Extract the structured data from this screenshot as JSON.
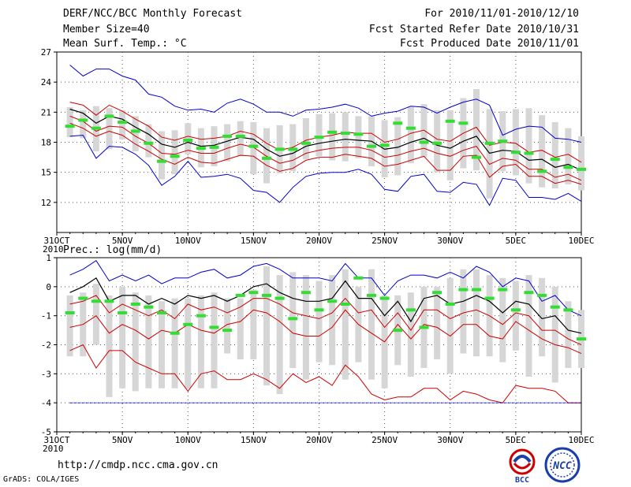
{
  "header": {
    "title": "DERF/NCC/BCC Monthly Forecast",
    "member": "Member Size=40",
    "variable": "Mean Surf. Temp.: °C",
    "period": "For 2010/11/01-2010/12/10",
    "started": "Fcst Started Refer Date 2010/10/31",
    "produced": "Fcst Produced Date 2010/11/01"
  },
  "footer": {
    "url": "http://cmdp.ncc.cma.gov.cn",
    "grads": "GrADS: COLA/IGES",
    "logo_bcc_text": "BCC",
    "logo_ncc_text": "NCC"
  },
  "colors": {
    "envelope_max_min": "#0000cc",
    "spread": "#cc0000",
    "mean": "#000000",
    "members_box": "#d6d6d6",
    "median": "#33dd33",
    "grid": "#555555"
  },
  "x_axis": {
    "ticks": [
      {
        "day": 0,
        "label": "31OCT",
        "sub": "2010"
      },
      {
        "day": 5,
        "label": "5NOV"
      },
      {
        "day": 10,
        "label": "10NOV"
      },
      {
        "day": 15,
        "label": "15NOV"
      },
      {
        "day": 20,
        "label": "20NOV"
      },
      {
        "day": 25,
        "label": "25NOV"
      },
      {
        "day": 30,
        "label": "30NOV"
      },
      {
        "day": 35,
        "label": "5DEC"
      },
      {
        "day": 40,
        "label": "10DEC"
      }
    ]
  },
  "chart_data": [
    {
      "type": "line",
      "title": "Mean Surf. Temp.: °C",
      "ylabel": "",
      "ylim": [
        9,
        27
      ],
      "yticks": [
        12,
        15,
        18,
        21,
        24,
        27
      ],
      "xlim": [
        0,
        40
      ],
      "x": [
        1,
        2,
        3,
        4,
        5,
        6,
        7,
        8,
        9,
        10,
        11,
        12,
        13,
        14,
        15,
        16,
        17,
        18,
        19,
        20,
        21,
        22,
        23,
        24,
        25,
        26,
        27,
        28,
        29,
        30,
        31,
        32,
        33,
        34,
        35,
        36,
        37,
        38,
        39,
        40
      ],
      "series": [
        {
          "name": "max",
          "values": [
            25.7,
            24.6,
            25.3,
            25.3,
            24.6,
            24.2,
            22.8,
            22.5,
            21.6,
            21.2,
            21.3,
            21.0,
            21.9,
            22.3,
            21.8,
            21.0,
            21.0,
            20.6,
            21.2,
            21.3,
            21.5,
            21.8,
            21.4,
            20.6,
            20.9,
            21.1,
            21.6,
            21.5,
            20.9,
            21.5,
            22.0,
            22.3,
            21.7,
            18.7,
            19.3,
            19.6,
            19.5,
            18.4,
            18.3,
            18.0
          ]
        },
        {
          "name": "spread_upper",
          "values": [
            22.0,
            21.7,
            20.7,
            21.7,
            21.1,
            20.3,
            19.6,
            18.5,
            18.2,
            18.6,
            18.3,
            18.4,
            18.6,
            19.1,
            18.8,
            17.9,
            17.2,
            17.5,
            18.2,
            18.5,
            18.7,
            19.0,
            18.9,
            18.9,
            18.0,
            18.3,
            18.9,
            19.2,
            18.3,
            18.1,
            18.9,
            19.5,
            17.7,
            18.0,
            17.9,
            17.0,
            17.2,
            16.5,
            16.8,
            16.0
          ]
        },
        {
          "name": "mean",
          "values": [
            21.3,
            20.9,
            19.9,
            20.6,
            20.3,
            19.5,
            18.8,
            17.8,
            17.5,
            18.0,
            17.6,
            17.7,
            18.1,
            18.5,
            18.3,
            17.3,
            16.6,
            16.9,
            17.6,
            17.9,
            18.1,
            18.3,
            18.2,
            18.1,
            17.3,
            17.5,
            18.0,
            18.4,
            17.7,
            17.4,
            18.1,
            18.6,
            16.9,
            17.2,
            17.1,
            16.2,
            16.3,
            15.5,
            15.8,
            15.2
          ]
        },
        {
          "name": "spread_lower",
          "values": [
            20.6,
            20.1,
            19.1,
            19.6,
            19.5,
            18.6,
            17.9,
            16.9,
            16.8,
            17.2,
            16.9,
            16.9,
            17.4,
            17.8,
            17.5,
            16.6,
            15.9,
            16.2,
            16.9,
            17.2,
            17.4,
            17.5,
            17.5,
            17.2,
            16.5,
            16.7,
            17.1,
            17.4,
            16.9,
            16.6,
            17.2,
            17.6,
            15.8,
            16.4,
            16.2,
            15.3,
            15.3,
            14.5,
            14.8,
            14.2
          ]
        },
        {
          "name": "spread_lowest",
          "values": [
            19.9,
            19.4,
            18.6,
            19.1,
            18.7,
            17.8,
            17.1,
            16.3,
            15.8,
            16.5,
            16.0,
            15.9,
            16.3,
            16.7,
            16.6,
            15.7,
            15.1,
            15.4,
            16.2,
            16.5,
            16.5,
            16.8,
            16.6,
            16.4,
            15.6,
            15.8,
            16.2,
            16.6,
            15.2,
            15.2,
            16.6,
            16.7,
            14.5,
            15.6,
            15.8,
            14.6,
            14.6,
            13.9,
            14.2,
            13.8
          ]
        },
        {
          "name": "min",
          "values": [
            18.6,
            18.7,
            16.4,
            17.6,
            17.5,
            16.8,
            15.7,
            13.7,
            14.6,
            16.1,
            14.5,
            14.6,
            14.8,
            14.4,
            13.2,
            13.0,
            12.0,
            13.5,
            14.6,
            14.9,
            15.0,
            15.0,
            15.3,
            14.8,
            13.3,
            13.1,
            14.6,
            14.8,
            13.1,
            13.0,
            14.0,
            13.8,
            11.7,
            14.4,
            14.2,
            12.5,
            12.5,
            12.3,
            12.9,
            12.1
          ]
        },
        {
          "name": "box_top",
          "values": [
            21.5,
            21.2,
            21.6,
            21.4,
            21.2,
            20.6,
            19.8,
            19.1,
            19.2,
            19.9,
            19.4,
            19.6,
            19.8,
            20.1,
            20.0,
            19.4,
            19.7,
            19.8,
            20.4,
            20.8,
            20.9,
            21.0,
            20.6,
            20.6,
            20.2,
            20.5,
            21.6,
            21.8,
            21.2,
            21.2,
            22.4,
            23.3,
            21.3,
            21.1,
            21.3,
            21.4,
            20.7,
            20.0,
            19.4,
            18.6
          ]
        },
        {
          "name": "box_bottom",
          "values": [
            18.5,
            18.4,
            17.1,
            17.3,
            18.3,
            17.1,
            16.5,
            14.3,
            14.8,
            16.8,
            15.5,
            15.6,
            16.1,
            16.6,
            14.8,
            13.9,
            14.9,
            15.1,
            16.3,
            16.6,
            16.2,
            16.1,
            16.4,
            15.6,
            14.5,
            14.7,
            15.9,
            16.5,
            15.0,
            14.2,
            15.4,
            15.2,
            12.4,
            15.1,
            14.7,
            13.9,
            13.5,
            13.4,
            13.8,
            13.2
          ]
        },
        {
          "name": "median",
          "values": [
            19.6,
            20.2,
            19.4,
            20.6,
            20.0,
            19.1,
            17.9,
            16.1,
            16.6,
            18.2,
            17.4,
            17.5,
            18.6,
            18.6,
            17.6,
            16.4,
            17.3,
            17.3,
            17.9,
            18.5,
            19.0,
            18.9,
            18.8,
            17.6,
            17.7,
            19.9,
            19.4,
            18.0,
            17.9,
            20.1,
            19.9,
            16.5,
            17.9,
            18.1,
            17.0,
            16.9,
            15.1,
            16.3,
            15.5,
            15.3
          ]
        }
      ]
    },
    {
      "type": "line",
      "title": "Prec.: log(mm/d)",
      "ylabel": "",
      "ylim": [
        -5,
        1
      ],
      "yticks": [
        -5,
        -4,
        -3,
        -2,
        -1,
        0,
        1
      ],
      "xlim": [
        0,
        40
      ],
      "x": [
        1,
        2,
        3,
        4,
        5,
        6,
        7,
        8,
        9,
        10,
        11,
        12,
        13,
        14,
        15,
        16,
        17,
        18,
        19,
        20,
        21,
        22,
        23,
        24,
        25,
        26,
        27,
        28,
        29,
        30,
        31,
        32,
        33,
        34,
        35,
        36,
        37,
        38,
        39,
        40
      ],
      "series": [
        {
          "name": "max",
          "values": [
            0.4,
            0.6,
            0.9,
            0.2,
            0.4,
            0.2,
            0.4,
            0.1,
            0.3,
            0.3,
            0.5,
            0.6,
            0.3,
            0.4,
            0.7,
            0.8,
            0.6,
            0.3,
            0.3,
            0.3,
            0.2,
            0.8,
            0.3,
            0.3,
            -0.3,
            0.2,
            0.4,
            0.4,
            0.3,
            0.5,
            0.3,
            0.7,
            0.5,
            0.0,
            0.3,
            0.2,
            -0.5,
            -0.3,
            -0.8,
            -1.0
          ]
        },
        {
          "name": "mean",
          "values": [
            -0.2,
            0.0,
            0.3,
            -0.5,
            -0.3,
            -0.3,
            -0.6,
            -0.4,
            -0.6,
            -0.3,
            -0.4,
            -0.3,
            -0.5,
            -0.3,
            0.0,
            0.1,
            -0.2,
            -0.4,
            -0.5,
            -0.5,
            -0.4,
            0.2,
            -0.4,
            -0.4,
            -1.0,
            -0.5,
            -1.2,
            -0.4,
            -0.3,
            -0.6,
            -0.5,
            -0.3,
            -0.5,
            -0.9,
            -0.5,
            -0.6,
            -1.1,
            -1.0,
            -1.5,
            -1.6
          ]
        },
        {
          "name": "spread_upper",
          "values": [
            -0.6,
            -0.5,
            -0.3,
            -0.9,
            -0.6,
            -0.8,
            -1.0,
            -0.8,
            -1.1,
            -0.6,
            -0.8,
            -0.7,
            -0.9,
            -0.7,
            -0.4,
            -0.4,
            -0.6,
            -0.9,
            -1.0,
            -1.1,
            -0.9,
            -0.4,
            -0.9,
            -0.8,
            -1.4,
            -0.9,
            -1.5,
            -0.8,
            -0.8,
            -1.1,
            -0.9,
            -0.8,
            -1.0,
            -1.3,
            -0.9,
            -1.0,
            -1.5,
            -1.5,
            -1.8,
            -2.0
          ]
        },
        {
          "name": "spread_lower",
          "values": [
            -1.4,
            -1.3,
            -1.0,
            -1.6,
            -1.3,
            -1.5,
            -1.8,
            -1.5,
            -1.6,
            -1.3,
            -1.5,
            -1.6,
            -1.3,
            -1.2,
            -0.8,
            -0.9,
            -1.2,
            -1.6,
            -1.7,
            -1.7,
            -1.4,
            -0.8,
            -1.3,
            -1.6,
            -1.9,
            -1.3,
            -1.8,
            -1.3,
            -1.4,
            -1.7,
            -1.3,
            -1.3,
            -1.7,
            -1.8,
            -1.2,
            -1.5,
            -1.8,
            -2.0,
            -2.1,
            -2.3
          ]
        },
        {
          "name": "lowest",
          "values": [
            -2.2,
            -2.0,
            -2.8,
            -2.2,
            -2.2,
            -2.6,
            -2.8,
            -3.0,
            -3.0,
            -3.6,
            -3.0,
            -2.9,
            -3.2,
            -3.2,
            -3.0,
            -3.2,
            -3.5,
            -3.0,
            -3.3,
            -3.1,
            -3.4,
            -2.7,
            -3.1,
            -3.7,
            -3.9,
            -3.8,
            -3.8,
            -3.5,
            -3.5,
            -3.9,
            -3.6,
            -3.7,
            -3.9,
            -4.0,
            -3.4,
            -3.5,
            -3.5,
            -3.6,
            -4.0,
            -4.0
          ]
        },
        {
          "name": "min",
          "values": [
            -4.0,
            -4.0,
            -4.0,
            -4.0,
            -4.0,
            -4.0,
            -4.0,
            -4.0,
            -4.0,
            -4.0,
            -4.0,
            -4.0,
            -4.0,
            -4.0,
            -4.0,
            -4.0,
            -4.0,
            -4.0,
            -4.0,
            -4.0,
            -4.0,
            -4.0,
            -4.0,
            -4.0,
            -4.0,
            -4.0,
            -4.0,
            -4.0,
            -4.0,
            -4.0,
            -4.0,
            -4.0,
            -4.0,
            -4.0,
            -4.0,
            -4.0,
            -4.0,
            -4.0,
            -4.0,
            -4.0
          ]
        },
        {
          "name": "box_top",
          "values": [
            -0.3,
            -0.2,
            0.1,
            -0.3,
            0.0,
            -0.2,
            -0.3,
            -0.5,
            -0.4,
            -0.4,
            -0.3,
            -0.2,
            -0.4,
            -0.4,
            -0.1,
            0.7,
            0.4,
            0.5,
            0.4,
            0.2,
            0.4,
            0.6,
            0.0,
            0.6,
            -0.3,
            -0.3,
            -0.2,
            0.0,
            0.0,
            0.3,
            0.6,
            0.6,
            0.4,
            0.3,
            0.2,
            0.4,
            0.3,
            0.0,
            -0.5,
            -0.8
          ]
        },
        {
          "name": "box_bottom",
          "values": [
            -2.4,
            -2.4,
            -2.0,
            -3.8,
            -3.5,
            -3.6,
            -3.5,
            -3.5,
            -3.5,
            -3.5,
            -3.5,
            -3.5,
            -2.3,
            -2.5,
            -2.5,
            -3.4,
            -3.7,
            -2.8,
            -3.2,
            -2.6,
            -2.7,
            -3.2,
            -2.6,
            -3.2,
            -3.5,
            -2.7,
            -3.1,
            -2.8,
            -2.5,
            -3.0,
            -2.3,
            -2.4,
            -2.4,
            -2.6,
            -2.2,
            -3.1,
            -2.4,
            -3.3,
            -2.8,
            -2.8
          ]
        },
        {
          "name": "median",
          "values": [
            -0.9,
            -0.4,
            -0.5,
            -0.5,
            -0.9,
            -0.6,
            -0.7,
            -0.9,
            -1.6,
            -1.3,
            -1.0,
            -1.4,
            -1.5,
            -0.3,
            -0.2,
            -0.3,
            -0.4,
            -1.1,
            -0.2,
            -0.8,
            -0.5,
            -0.6,
            0.3,
            -0.3,
            -0.4,
            -1.5,
            -0.8,
            -1.4,
            -0.2,
            -0.6,
            -0.1,
            -0.1,
            -0.4,
            -0.1,
            -0.8,
            -0.2,
            -0.3,
            -0.7,
            -0.8,
            -1.8
          ]
        }
      ]
    }
  ]
}
